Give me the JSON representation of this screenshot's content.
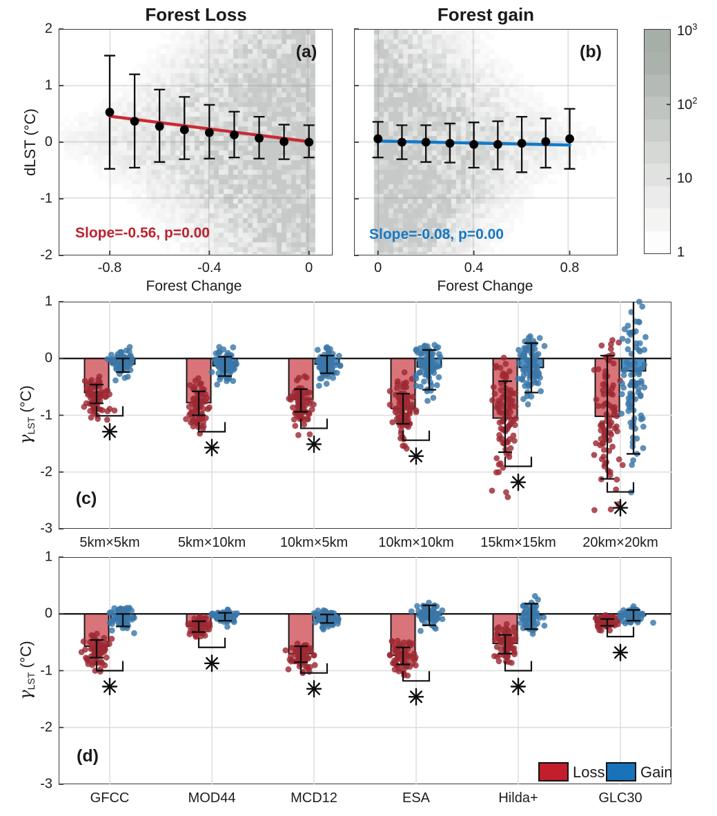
{
  "chart_data": [
    {
      "id": "a",
      "type": "scatter",
      "title": "Forest Loss",
      "letter": "(a)",
      "xlabel": "Forest Change",
      "ylabel": "dLST (°C)",
      "xlim": [
        -1.005,
        0.095
      ],
      "ylim": [
        -2,
        2
      ],
      "xticks": [
        -0.8,
        -0.4,
        0
      ],
      "yticks": [
        2,
        1,
        0,
        -1,
        -2
      ],
      "grid_x": [
        -0.8,
        -0.4,
        0
      ],
      "grid_y": [
        1,
        0,
        -1
      ],
      "show_ylabels": true,
      "annotation": "Slope=-0.56, p=0.00",
      "annotation_color": "#bb222e",
      "line": {
        "x0": -0.8,
        "y0": 0.46,
        "x1": 0,
        "y1": 0.01,
        "color": "#c92a35"
      },
      "points": {
        "x": [
          -0.8,
          -0.7,
          -0.6,
          -0.5,
          -0.4,
          -0.3,
          -0.2,
          -0.1,
          0
        ],
        "y": [
          0.53,
          0.37,
          0.28,
          0.22,
          0.17,
          0.13,
          0.07,
          0.01,
          0.0
        ],
        "lo": [
          -0.47,
          -0.45,
          -0.35,
          -0.3,
          -0.29,
          -0.27,
          -0.29,
          -0.3,
          -0.27
        ],
        "hi": [
          1.53,
          1.2,
          0.93,
          0.8,
          0.66,
          0.54,
          0.45,
          0.31,
          0.3
        ]
      },
      "density": "wedge-left"
    },
    {
      "id": "b",
      "type": "scatter",
      "title": "Forest gain",
      "letter": "(b)",
      "xlabel": "Forest Change",
      "xlim": [
        -0.1,
        1.0
      ],
      "ylim": [
        -2,
        2
      ],
      "xticks": [
        0,
        0.4,
        0.8
      ],
      "yticks": [
        2,
        1,
        0,
        -1,
        -2
      ],
      "grid_x": [
        0,
        0.4,
        0.8
      ],
      "grid_y": [
        1,
        0,
        -1
      ],
      "show_ylabels": false,
      "annotation": "Slope=-0.08, p=0.00",
      "annotation_color": "#1777c4",
      "line": {
        "x0": 0,
        "y0": 0.02,
        "x1": 0.8,
        "y1": -0.05,
        "color": "#1179c8"
      },
      "points": {
        "x": [
          0,
          0.1,
          0.2,
          0.3,
          0.4,
          0.5,
          0.6,
          0.7,
          0.8
        ],
        "y": [
          0.06,
          0.0,
          0.0,
          -0.02,
          -0.04,
          -0.04,
          -0.02,
          0.01,
          0.06
        ],
        "lo": [
          -0.27,
          -0.3,
          -0.35,
          -0.36,
          -0.45,
          -0.48,
          -0.53,
          -0.45,
          -0.47
        ],
        "hi": [
          0.36,
          0.3,
          0.3,
          0.33,
          0.35,
          0.37,
          0.45,
          0.42,
          0.59
        ]
      },
      "density": "wedge-right"
    },
    {
      "id": "c",
      "type": "bar",
      "letter": "(c)",
      "ylabel_parts": {
        "gamma": "γ",
        "sub": "LST",
        "unit": " (°C)"
      },
      "ylim": [
        -3,
        1
      ],
      "yticks": [
        1,
        0,
        -1,
        -2,
        -3
      ],
      "grid_y": [
        -1,
        -2
      ],
      "categories": [
        "5km×5km",
        "5km×10km",
        "10km×5km",
        "10km×10km",
        "15km×15km",
        "20km×20km"
      ],
      "series": [
        {
          "name": "Loss",
          "color": "#c8323c",
          "fill_opacity": 0.68,
          "point_color": "#9e2a33",
          "values": [
            -0.6,
            -0.78,
            -0.72,
            -0.88,
            -1.05,
            -1.02
          ],
          "err_lo": [
            -0.79,
            -1.0,
            -0.94,
            -1.15,
            -1.65,
            -2.12
          ],
          "err_hi": [
            -0.46,
            -0.58,
            -0.54,
            -0.62,
            -0.4,
            0.05
          ],
          "scatter": {
            "mu": [
              -0.68,
              -0.85,
              -0.8,
              -0.88,
              -0.95,
              -0.95
            ],
            "sd": [
              0.2,
              0.25,
              0.22,
              0.3,
              0.55,
              0.75
            ],
            "min": [
              -1.25,
              -1.4,
              -1.35,
              -1.6,
              -2.78,
              -2.85
            ],
            "max": [
              -0.28,
              -0.33,
              -0.3,
              -0.1,
              0.05,
              0.4
            ],
            "n": [
              75,
              75,
              75,
              80,
              90,
              90
            ]
          }
        },
        {
          "name": "Gain",
          "color": "#2e7fc1",
          "fill_opacity": 0.85,
          "point_color": "#3a78a8",
          "values": [
            -0.1,
            -0.13,
            -0.1,
            -0.15,
            -0.16,
            -0.22
          ],
          "err_lo": [
            -0.24,
            -0.31,
            -0.26,
            -0.55,
            -0.6,
            -1.68
          ],
          "err_hi": [
            0.0,
            0.03,
            0.05,
            0.15,
            0.27,
            1.0
          ],
          "scatter": {
            "mu": [
              -0.07,
              -0.12,
              -0.08,
              -0.1,
              -0.1,
              -0.3
            ],
            "sd": [
              0.12,
              0.16,
              0.15,
              0.22,
              0.3,
              0.75
            ],
            "min": [
              -0.45,
              -0.8,
              -0.5,
              -0.95,
              -1.4,
              -2.7
            ],
            "max": [
              0.28,
              0.3,
              0.45,
              0.35,
              0.52,
              1.0
            ],
            "n": [
              75,
              75,
              75,
              80,
              85,
              90
            ]
          }
        }
      ],
      "bracket_y": [
        -1.01,
        -1.29,
        -1.23,
        -1.44,
        -1.9,
        -2.35
      ],
      "sig": "*"
    },
    {
      "id": "d",
      "type": "bar",
      "letter": "(d)",
      "ylabel_parts": {
        "gamma": "γ",
        "sub": "LST",
        "unit": " (°C)"
      },
      "ylim": [
        -3,
        1
      ],
      "yticks": [
        1,
        0,
        -1,
        -2,
        -3
      ],
      "grid_y": [
        -1,
        -2
      ],
      "categories": [
        "GFCC",
        "MOD44",
        "MCD12",
        "ESA",
        "Hilda+",
        "GLC30"
      ],
      "series": [
        {
          "name": "Loss",
          "color": "#c8323c",
          "fill_opacity": 0.68,
          "point_color": "#9e2a33",
          "values": [
            -0.57,
            -0.22,
            -0.7,
            -0.73,
            -0.52,
            -0.15
          ],
          "err_lo": [
            -0.77,
            -0.32,
            -0.85,
            -0.89,
            -0.7,
            -0.21
          ],
          "err_hi": [
            -0.46,
            -0.13,
            -0.57,
            -0.59,
            -0.37,
            -0.09
          ],
          "scatter": {
            "mu": [
              -0.62,
              -0.22,
              -0.75,
              -0.78,
              -0.58,
              -0.14
            ],
            "sd": [
              0.17,
              0.1,
              0.12,
              0.15,
              0.2,
              0.06
            ],
            "min": [
              -1.05,
              -0.5,
              -1.05,
              -1.15,
              -1.05,
              -0.38
            ],
            "max": [
              -0.28,
              -0.03,
              -0.5,
              -0.42,
              -0.15,
              -0.02
            ],
            "n": [
              70,
              70,
              70,
              70,
              70,
              70
            ]
          }
        },
        {
          "name": "Gain",
          "color": "#2e7fc1",
          "fill_opacity": 0.85,
          "point_color": "#3a78a8",
          "values": [
            -0.1,
            -0.05,
            -0.08,
            -0.02,
            -0.02,
            -0.03
          ],
          "err_lo": [
            -0.22,
            -0.12,
            -0.16,
            -0.2,
            -0.27,
            -0.12
          ],
          "err_hi": [
            0.0,
            0.02,
            -0.01,
            0.15,
            0.18,
            0.07
          ],
          "scatter": {
            "mu": [
              -0.07,
              -0.04,
              -0.08,
              -0.02,
              -0.02,
              -0.03
            ],
            "sd": [
              0.1,
              0.07,
              0.08,
              0.1,
              0.15,
              0.07
            ],
            "min": [
              -0.38,
              -0.25,
              -0.3,
              -0.3,
              -0.5,
              -0.22
            ],
            "max": [
              0.22,
              0.12,
              0.1,
              0.3,
              0.42,
              0.16
            ],
            "n": [
              70,
              70,
              70,
              70,
              70,
              70
            ]
          }
        }
      ],
      "bracket_y": [
        -1.0,
        -0.59,
        -1.04,
        -1.18,
        -1.0,
        -0.4
      ],
      "sig": "*"
    }
  ],
  "colorbar": {
    "labels": [
      {
        "base": "10",
        "exp": "3"
      },
      {
        "base": "10",
        "exp": "2"
      },
      {
        "base": "10",
        "exp": ""
      },
      {
        "base": "1",
        "exp": ""
      }
    ],
    "positions": [
      0,
      0.3333,
      0.6667,
      1
    ],
    "shades": [
      "#a6aea8",
      "#abb2ac",
      "#b4bab5",
      "#bfc4c0",
      "#cacecb",
      "#d5d8d5",
      "#e0e2e0",
      "#eaebea",
      "#f4f4f3",
      "#fdfdfd"
    ]
  },
  "legend": {
    "items": [
      {
        "label": "Loss",
        "color": "#c21e2c"
      },
      {
        "label": "Gain",
        "color": "#1873bb"
      }
    ]
  }
}
